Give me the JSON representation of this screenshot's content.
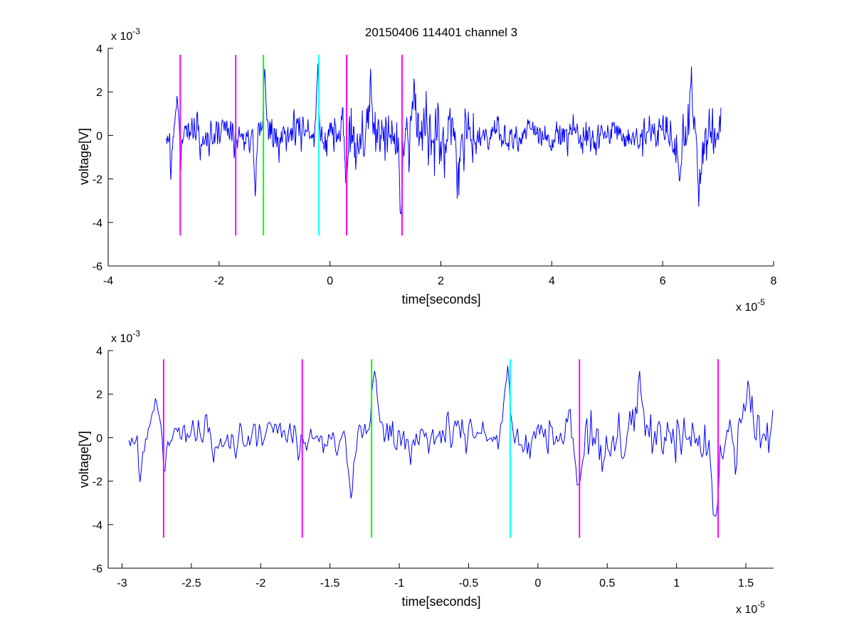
{
  "title": "20150406 114401 channel 3",
  "colors": {
    "signal": "#0000ff",
    "magenta": "#ff00ff",
    "green": "#00ff00",
    "cyan": "#00ffff",
    "axis": "#000000"
  },
  "chart_data": [
    {
      "type": "line",
      "xlabel": "time[seconds]",
      "ylabel": "voltage[V]",
      "x_exponent_label": "x 10",
      "x_exponent": "-5",
      "y_exponent_label": "x 10",
      "y_exponent": "-3",
      "xlim": [
        -4,
        8
      ],
      "ylim": [
        -6,
        4
      ],
      "x_ticks": [
        -4,
        -2,
        0,
        2,
        4,
        6,
        8
      ],
      "x_tick_labels": [
        "-4",
        "-2",
        "0",
        "2",
        "4",
        "6",
        "8"
      ],
      "y_ticks": [
        -6,
        -4,
        -2,
        0,
        2,
        4
      ],
      "y_tick_labels": [
        "-6",
        "-4",
        "-2",
        "0",
        "2",
        "4"
      ],
      "grid": false,
      "signal_range": [
        -2.95,
        7.05
      ],
      "markers": [
        {
          "x": -2.7,
          "color": "magenta",
          "y_range": [
            -4.6,
            3.7
          ]
        },
        {
          "x": -1.7,
          "color": "magenta",
          "y_range": [
            -4.6,
            3.7
          ]
        },
        {
          "x": -1.2,
          "color": "green",
          "y_range": [
            -4.6,
            3.7
          ]
        },
        {
          "x": -0.2,
          "color": "cyan",
          "y_range": [
            -4.6,
            3.7
          ]
        },
        {
          "x": 0.3,
          "color": "magenta",
          "y_range": [
            -4.6,
            3.7
          ]
        },
        {
          "x": 1.3,
          "color": "magenta",
          "y_range": [
            -4.6,
            3.7
          ]
        }
      ]
    },
    {
      "type": "line",
      "xlabel": "time[seconds]",
      "ylabel": "voltage[V]",
      "x_exponent_label": "x 10",
      "x_exponent": "-5",
      "y_exponent_label": "x 10",
      "y_exponent": "-3",
      "xlim": [
        -3.1,
        1.7
      ],
      "ylim": [
        -6,
        4
      ],
      "x_ticks": [
        -3,
        -2.5,
        -2,
        -1.5,
        -1,
        -0.5,
        0,
        0.5,
        1,
        1.5
      ],
      "x_tick_labels": [
        "-3",
        "-2.5",
        "-2",
        "-1.5",
        "-1",
        "-0.5",
        "0",
        "0.5",
        "1",
        "1.5"
      ],
      "y_ticks": [
        -6,
        -4,
        -2,
        0,
        2,
        4
      ],
      "y_tick_labels": [
        "-6",
        "-4",
        "-2",
        "0",
        "2",
        "4"
      ],
      "grid": false,
      "signal_range": [
        -2.95,
        1.7
      ],
      "markers": [
        {
          "x": -2.7,
          "color": "magenta",
          "y_range": [
            -4.6,
            3.6
          ]
        },
        {
          "x": -1.7,
          "color": "magenta",
          "y_range": [
            -4.6,
            3.6
          ]
        },
        {
          "x": -1.2,
          "color": "green",
          "y_range": [
            -4.6,
            3.6
          ]
        },
        {
          "x": -0.2,
          "color": "cyan",
          "y_range": [
            -4.6,
            3.6
          ]
        },
        {
          "x": 0.3,
          "color": "magenta",
          "y_range": [
            -4.6,
            3.6
          ]
        },
        {
          "x": 1.3,
          "color": "magenta",
          "y_range": [
            -4.6,
            3.6
          ]
        }
      ]
    }
  ]
}
